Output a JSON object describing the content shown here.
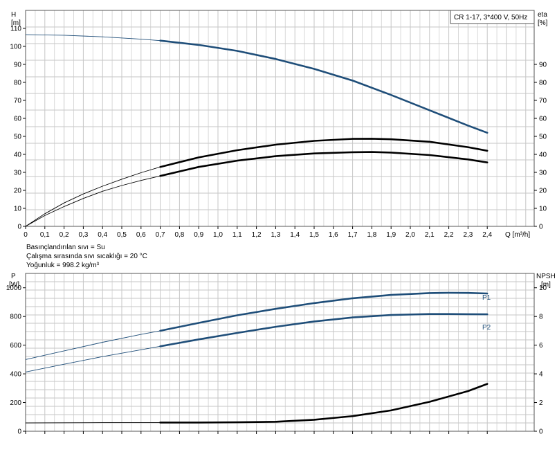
{
  "chart_data": [
    {
      "type": "line",
      "title": "CR 1-17, 3*400 V, 50Hz",
      "ylabel_left": "H",
      "ylabel_left_unit": "[m]",
      "ylabel_right": "eta",
      "ylabel_right_unit": "[%]",
      "xlabel": "Q [m³/h]",
      "xlim": [
        0,
        2.6
      ],
      "x_ticks": [
        "0",
        "0,1",
        "0,2",
        "0,3",
        "0,4",
        "0,5",
        "0,6",
        "0,7",
        "0,8",
        "0,9",
        "1,0",
        "1,1",
        "1,2",
        "1,3",
        "1,4",
        "1,5",
        "1,6",
        "1,7",
        "1,8",
        "1,9",
        "2,0",
        "2,1",
        "2,2",
        "2,3",
        "2,4"
      ],
      "ylim_left": [
        0,
        120
      ],
      "y_ticks_left": [
        "0",
        "10",
        "20",
        "30",
        "40",
        "50",
        "60",
        "70",
        "80",
        "90",
        "100",
        "110"
      ],
      "ylim_right": [
        0,
        120
      ],
      "y_ticks_right": [
        "0",
        "10",
        "20",
        "30",
        "40",
        "50",
        "60",
        "70",
        "80",
        "90"
      ],
      "grid": true,
      "series": [
        {
          "key": "head",
          "axis": "left",
          "color": "#1f4e79",
          "x": [
            0,
            0.2,
            0.4,
            0.6,
            0.7,
            0.9,
            1.1,
            1.3,
            1.5,
            1.7,
            1.9,
            2.1,
            2.3,
            2.4
          ],
          "y": [
            106.5,
            106.2,
            105.3,
            104.0,
            103.2,
            100.8,
            97.5,
            93.0,
            87.5,
            81.0,
            73.0,
            64.5,
            56.0,
            52.0
          ],
          "operating_from": 0.7
        },
        {
          "key": "eta_upper",
          "axis": "right",
          "color": "#000000",
          "x": [
            0,
            0.1,
            0.2,
            0.3,
            0.4,
            0.5,
            0.6,
            0.7,
            0.9,
            1.1,
            1.3,
            1.5,
            1.7,
            1.8,
            1.9,
            2.1,
            2.3,
            2.4
          ],
          "y": [
            0,
            7.0,
            13.0,
            18.0,
            22.3,
            26.2,
            29.8,
            33.0,
            38.3,
            42.3,
            45.4,
            47.5,
            48.6,
            48.7,
            48.4,
            47.0,
            44.0,
            42.0
          ],
          "operating_from": 0.7
        },
        {
          "key": "eta_lower",
          "axis": "right",
          "color": "#000000",
          "x": [
            0,
            0.1,
            0.2,
            0.3,
            0.4,
            0.5,
            0.6,
            0.7,
            0.9,
            1.1,
            1.3,
            1.5,
            1.7,
            1.8,
            1.9,
            2.1,
            2.3,
            2.4
          ],
          "y": [
            0,
            6.0,
            11.0,
            15.5,
            19.5,
            22.7,
            25.5,
            28.0,
            33.0,
            36.5,
            39.0,
            40.5,
            41.2,
            41.3,
            41.0,
            39.6,
            37.2,
            35.5
          ],
          "operating_from": 0.7
        }
      ]
    },
    {
      "type": "line",
      "ylabel_left": "P",
      "ylabel_left_unit": "[W]",
      "ylabel_right": "NPSH",
      "ylabel_right_unit": "[m]",
      "xlim": [
        0,
        2.6
      ],
      "ylim_left": [
        0,
        1100
      ],
      "y_ticks_left": [
        "0",
        "200",
        "400",
        "600",
        "800",
        "1000"
      ],
      "ylim_right": [
        0,
        11
      ],
      "y_ticks_right": [
        "0",
        "2",
        "4",
        "6",
        "8",
        "10"
      ],
      "grid": true,
      "series": [
        {
          "key": "p1",
          "name": "P1",
          "axis": "left",
          "color": "#1f4e79",
          "x": [
            0,
            0.2,
            0.4,
            0.6,
            0.7,
            0.9,
            1.1,
            1.3,
            1.5,
            1.7,
            1.9,
            2.1,
            2.2,
            2.3,
            2.4
          ],
          "y": [
            500,
            560,
            620,
            675,
            700,
            755,
            808,
            853,
            893,
            927,
            950,
            963,
            965,
            964,
            960
          ],
          "operating_from": 0.7
        },
        {
          "key": "p2",
          "name": "P2",
          "axis": "left",
          "color": "#1f4e79",
          "x": [
            0,
            0.2,
            0.4,
            0.6,
            0.7,
            0.9,
            1.1,
            1.3,
            1.5,
            1.7,
            1.9,
            2.1,
            2.2,
            2.3,
            2.4
          ],
          "y": [
            413,
            467,
            520,
            568,
            592,
            640,
            685,
            728,
            765,
            793,
            810,
            817,
            817,
            816,
            815
          ],
          "operating_from": 0.7
        },
        {
          "key": "npsh",
          "axis": "right",
          "color": "#000000",
          "x": [
            0,
            0.4,
            0.7,
            0.9,
            1.1,
            1.3,
            1.5,
            1.7,
            1.9,
            2.1,
            2.3,
            2.4
          ],
          "y": [
            0.58,
            0.6,
            0.61,
            0.61,
            0.62,
            0.66,
            0.8,
            1.05,
            1.45,
            2.05,
            2.8,
            3.3
          ],
          "operating_from": 0.7
        }
      ]
    }
  ],
  "fluid_info": [
    "Basınçlandırılan sıvı = Su",
    "Çalışma sırasında sıvı sıcaklığı = 20 °C",
    "Yoğunluk = 998.2 kg/m³"
  ]
}
